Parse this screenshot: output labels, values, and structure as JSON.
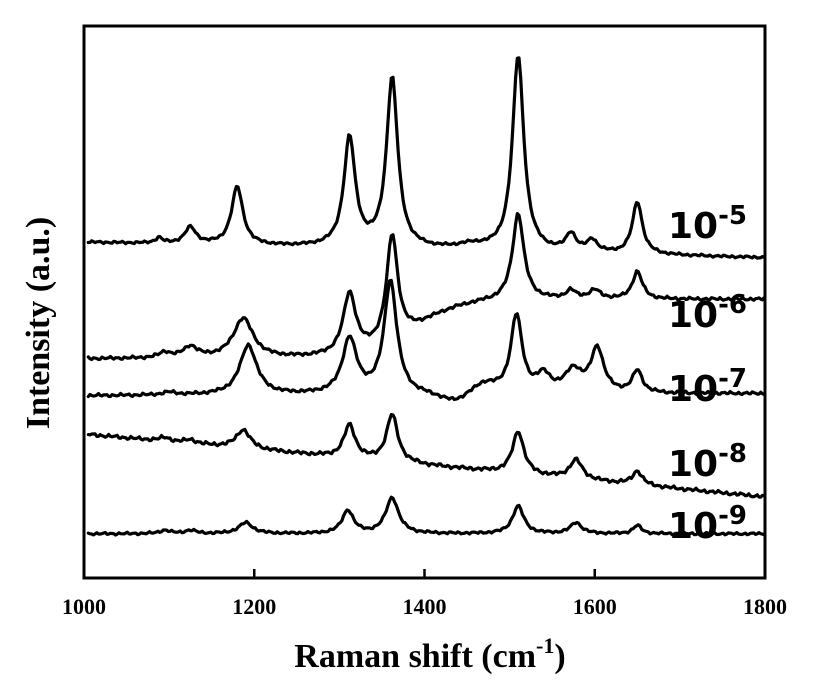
{
  "chart_data": {
    "type": "line",
    "title": "",
    "xlabel": "Raman shift (cm",
    "xlabel_sup": "-1",
    "xlabel_close": ")",
    "ylabel": "Intensity (a.u.)",
    "xlim": [
      1000,
      1800
    ],
    "ylim": [
      0,
      100
    ],
    "xticks": [
      1000,
      1200,
      1400,
      1600,
      1800
    ],
    "yticks_shown": false,
    "stacked_offset": true,
    "series": [
      {
        "name": "10-5",
        "label_base": "10",
        "label_exp": "-5",
        "offset": 60.8,
        "baseline_start": 0,
        "baseline_end": -2.8,
        "noise": 0.25,
        "rise": null,
        "peaks": [
          {
            "x": 1088,
            "a": 1.0,
            "w": 5
          },
          {
            "x": 1125,
            "a": 3.0,
            "w": 8
          },
          {
            "x": 1180,
            "a": 10.6,
            "w": 8
          },
          {
            "x": 1312,
            "a": 19.8,
            "w": 8
          },
          {
            "x": 1362,
            "a": 30.8,
            "w": 8
          },
          {
            "x": 1455,
            "a": 0.8,
            "w": 20
          },
          {
            "x": 1510,
            "a": 35.5,
            "w": 8
          },
          {
            "x": 1572,
            "a": 3.2,
            "w": 7
          },
          {
            "x": 1597,
            "a": 2.2,
            "w": 7
          },
          {
            "x": 1650,
            "a": 9.5,
            "w": 7
          }
        ]
      },
      {
        "name": "10-6",
        "label_base": "10",
        "label_exp": "-6",
        "offset": 39.7,
        "baseline_start": 0,
        "baseline_end": 0.3,
        "noise": 0.3,
        "rise": {
          "c": 1390,
          "w": 110,
          "a": 10.5
        },
        "peaks": [
          {
            "x": 1095,
            "a": 1.0,
            "w": 8
          },
          {
            "x": 1125,
            "a": 2.0,
            "w": 10
          },
          {
            "x": 1187,
            "a": 7.2,
            "w": 14
          },
          {
            "x": 1312,
            "a": 11.0,
            "w": 9
          },
          {
            "x": 1362,
            "a": 19.4,
            "w": 8
          },
          {
            "x": 1510,
            "a": 15.7,
            "w": 8
          },
          {
            "x": 1572,
            "a": 1.5,
            "w": 7
          },
          {
            "x": 1600,
            "a": 1.6,
            "w": 8
          },
          {
            "x": 1650,
            "a": 5.0,
            "w": 7
          }
        ]
      },
      {
        "name": "10-7",
        "label_base": "10",
        "label_exp": "-7",
        "offset": 33.0,
        "baseline_start": 0,
        "baseline_end": 0.4,
        "noise": 0.3,
        "rise": null,
        "peaks": [
          {
            "x": 1100,
            "a": 0.5,
            "w": 10
          },
          {
            "x": 1193,
            "a": 9.0,
            "w": 12
          },
          {
            "x": 1312,
            "a": 10.0,
            "w": 10
          },
          {
            "x": 1360,
            "a": 20.5,
            "w": 9
          },
          {
            "x": 1435,
            "a": -1.8,
            "w": 22
          },
          {
            "x": 1470,
            "a": 2.0,
            "w": 18
          },
          {
            "x": 1508,
            "a": 14.0,
            "w": 8
          },
          {
            "x": 1540,
            "a": 3.0,
            "w": 10
          },
          {
            "x": 1575,
            "a": 4.0,
            "w": 12
          },
          {
            "x": 1603,
            "a": 8.0,
            "w": 9
          },
          {
            "x": 1650,
            "a": 4.0,
            "w": 7
          }
        ]
      },
      {
        "name": "10-8",
        "label_base": "10",
        "label_exp": "-8",
        "offset": 26.0,
        "baseline_start": 0,
        "baseline_end": -11.3,
        "noise": 0.35,
        "rise": null,
        "peaks": [
          {
            "x": 1095,
            "a": 0.7,
            "w": 8
          },
          {
            "x": 1125,
            "a": 0.7,
            "w": 8
          },
          {
            "x": 1187,
            "a": 3.4,
            "w": 10
          },
          {
            "x": 1312,
            "a": 6.0,
            "w": 8
          },
          {
            "x": 1362,
            "a": 8.6,
            "w": 8
          },
          {
            "x": 1510,
            "a": 7.7,
            "w": 8
          },
          {
            "x": 1578,
            "a": 3.5,
            "w": 9
          },
          {
            "x": 1650,
            "a": 2.5,
            "w": 7
          }
        ]
      },
      {
        "name": "10-9",
        "label_base": "10",
        "label_exp": "-9",
        "offset": 8.0,
        "baseline_start": 0,
        "baseline_end": 0.0,
        "noise": 0.25,
        "rise": null,
        "peaks": [
          {
            "x": 1095,
            "a": 0.6,
            "w": 8
          },
          {
            "x": 1125,
            "a": 0.6,
            "w": 8
          },
          {
            "x": 1190,
            "a": 2.0,
            "w": 10
          },
          {
            "x": 1310,
            "a": 4.2,
            "w": 8
          },
          {
            "x": 1362,
            "a": 6.5,
            "w": 9
          },
          {
            "x": 1510,
            "a": 5.0,
            "w": 8
          },
          {
            "x": 1578,
            "a": 2.0,
            "w": 8
          },
          {
            "x": 1650,
            "a": 1.5,
            "w": 6
          }
        ]
      }
    ]
  }
}
